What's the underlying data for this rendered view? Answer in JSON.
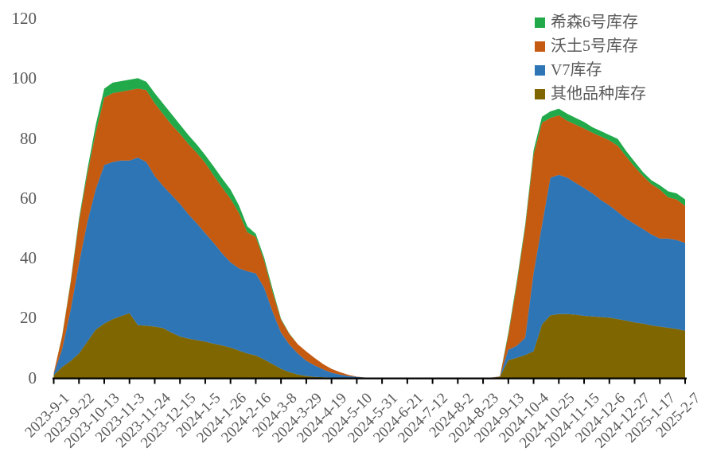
{
  "chart_data": {
    "type": "area",
    "stacked": true,
    "title": "",
    "background": "#FFFFFF",
    "axis_text_color": "#595959",
    "axis_line_color": "#000000",
    "grid": false,
    "legend_position": "top-right",
    "ylim": [
      0,
      120
    ],
    "yticks": [
      "0",
      "20",
      "40",
      "60",
      "80",
      "100",
      "120"
    ],
    "x_tick_label_every": 3,
    "x_tick_labels": [
      "2023-9-1",
      "2023-9-22",
      "2023-10-13",
      "2023-11-3",
      "2023-11-24",
      "2023-12-15",
      "2024-1-5",
      "2024-1-26",
      "2024-2-16",
      "2024-3-8",
      "2024-3-29",
      "2024-4-19",
      "2024-5-10",
      "2024-5-31",
      "2024-6-21",
      "2024-7-12",
      "2024-8-2",
      "2024-8-23",
      "2024-9-13",
      "2024-10-4",
      "2024-10-25",
      "2024-11-15",
      "2024-12-6",
      "2024-12-27",
      "2025-1-17",
      "2025-2-7"
    ],
    "dates": [
      "2023-9-1",
      "2023-9-8",
      "2023-9-15",
      "2023-9-22",
      "2023-9-29",
      "2023-10-6",
      "2023-10-13",
      "2023-10-20",
      "2023-10-27",
      "2023-11-3",
      "2023-11-10",
      "2023-11-17",
      "2023-11-24",
      "2023-12-1",
      "2023-12-8",
      "2023-12-15",
      "2023-12-22",
      "2023-12-29",
      "2024-1-5",
      "2024-1-12",
      "2024-1-19",
      "2024-1-26",
      "2024-2-2",
      "2024-2-9",
      "2024-2-16",
      "2024-2-23",
      "2024-3-1",
      "2024-3-8",
      "2024-3-15",
      "2024-3-22",
      "2024-3-29",
      "2024-4-5",
      "2024-4-12",
      "2024-4-19",
      "2024-4-26",
      "2024-5-3",
      "2024-5-10",
      "2024-5-17",
      "2024-5-24",
      "2024-5-31",
      "2024-6-7",
      "2024-6-14",
      "2024-6-21",
      "2024-6-28",
      "2024-7-5",
      "2024-7-12",
      "2024-7-19",
      "2024-7-26",
      "2024-8-2",
      "2024-8-9",
      "2024-8-16",
      "2024-8-23",
      "2024-8-30",
      "2024-9-6",
      "2024-9-13",
      "2024-9-20",
      "2024-9-27",
      "2024-10-4",
      "2024-10-11",
      "2024-10-18",
      "2024-10-25",
      "2024-11-1",
      "2024-11-8",
      "2024-11-15",
      "2024-11-22",
      "2024-11-29",
      "2024-12-6",
      "2024-12-13",
      "2024-12-20",
      "2024-12-27",
      "2025-1-3",
      "2025-1-10",
      "2025-1-17",
      "2025-1-24",
      "2025-1-31",
      "2025-2-7"
    ],
    "series": [
      {
        "id": "xisen6",
        "name": "希森6号库存",
        "color": "#21A94A",
        "values": [
          0,
          0.2,
          0.5,
          1,
          1.5,
          2.5,
          3,
          3.5,
          3.5,
          3.5,
          3.5,
          2.8,
          3.4,
          3.5,
          3.5,
          3.1,
          3,
          2.8,
          2.6,
          3,
          3,
          3.1,
          2.5,
          2,
          1,
          1,
          1,
          0.3,
          0.2,
          0,
          0,
          0,
          0,
          0,
          0,
          0,
          0,
          0,
          0,
          0,
          0,
          0,
          0,
          0,
          0,
          0,
          0,
          0,
          0,
          0,
          0,
          0,
          0,
          0,
          0.8,
          1,
          1,
          1.5,
          2,
          2.2,
          2.2,
          2.3,
          2.2,
          2.2,
          1.8,
          1.8,
          1.8,
          2.3,
          1.8,
          1.7,
          1.3,
          1.3,
          1.4,
          2,
          2,
          2.2
        ]
      },
      {
        "id": "wotu5",
        "name": "沃土5号库存",
        "color": "#C55A11",
        "values": [
          0.3,
          4.3,
          9,
          14,
          16,
          19,
          22.5,
          23,
          23,
          23.5,
          23,
          24,
          24.3,
          24,
          23.5,
          23.4,
          23.5,
          23.5,
          23.5,
          22.5,
          22,
          21.2,
          18.5,
          13,
          12.2,
          9,
          6.5,
          4.3,
          3.5,
          3.1,
          3.1,
          2.5,
          1.8,
          1.3,
          0.8,
          0.4,
          0.1,
          0,
          0,
          0,
          0,
          0,
          0,
          0,
          0,
          0,
          0,
          0,
          0,
          0,
          0,
          0,
          0,
          0.1,
          4.9,
          20.5,
          36.8,
          39.5,
          34.2,
          19.9,
          19.9,
          19,
          19.5,
          19.9,
          20.3,
          21.2,
          21.7,
          22.1,
          20.8,
          19.1,
          17.7,
          16.8,
          16.4,
          13.8,
          13.6,
          12.3
        ]
      },
      {
        "id": "v7",
        "name": "V7库存",
        "color": "#2E75B6",
        "values": [
          0.4,
          6,
          17,
          30,
          40,
          47,
          53,
          52.5,
          52,
          51,
          56,
          54.7,
          50.3,
          47.5,
          46,
          44.3,
          41.5,
          39,
          36.2,
          33.7,
          30.8,
          28.5,
          27.5,
          27.5,
          27.4,
          24,
          17.5,
          12.1,
          9.2,
          7,
          5.1,
          3.8,
          2.6,
          1.6,
          1,
          0.5,
          0.2,
          0,
          0,
          0,
          0,
          0,
          0,
          0,
          0,
          0,
          0,
          0,
          0,
          0,
          0,
          0,
          0,
          0.1,
          3.5,
          4,
          5.8,
          26.2,
          33.2,
          46,
          46.5,
          45.6,
          44,
          42.7,
          41.1,
          39.1,
          37.5,
          35.8,
          34.1,
          32.9,
          31.6,
          30.4,
          29.4,
          29.8,
          29.7,
          29.4
        ]
      },
      {
        "id": "other",
        "name": "其他品种库存",
        "color": "#7F6600",
        "values": [
          0.8,
          3.5,
          5.5,
          8,
          12,
          16,
          18,
          19.5,
          20.5,
          21.5,
          17.5,
          17.3,
          17,
          16.5,
          15,
          13.7,
          13,
          12.5,
          12,
          11.3,
          10.7,
          10,
          9,
          8,
          7.4,
          6,
          4.5,
          2.9,
          1.8,
          1,
          0.5,
          0.2,
          0.1,
          0,
          0,
          0,
          0,
          0,
          0,
          0,
          0,
          0,
          0,
          0,
          0,
          0,
          0,
          0,
          0,
          0,
          0,
          0,
          0,
          0.2,
          5.8,
          6.6,
          7.5,
          8.8,
          17.7,
          20.8,
          21.2,
          21.2,
          21,
          20.6,
          20.4,
          20.2,
          20,
          19.5,
          19,
          18.4,
          18,
          17.4,
          17,
          16.6,
          16.2,
          15.6
        ]
      }
    ]
  }
}
